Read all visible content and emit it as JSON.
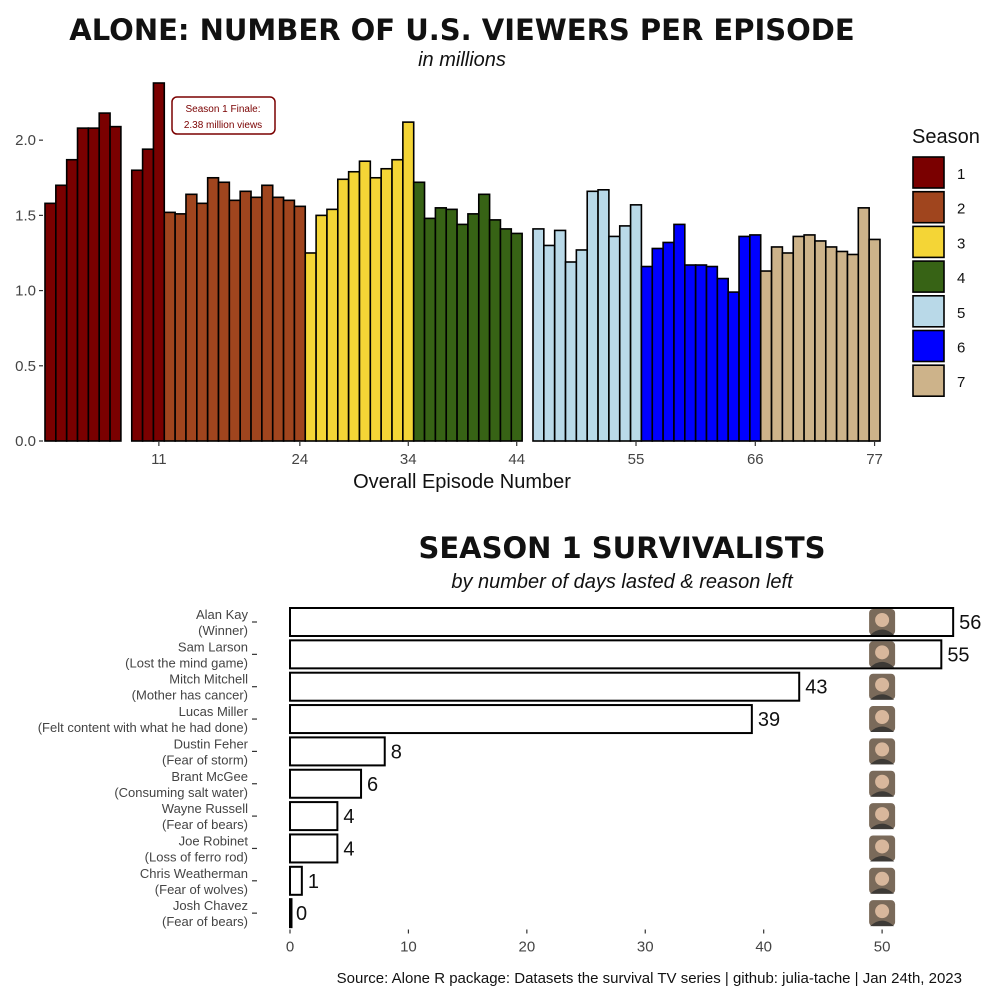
{
  "chart_data": [
    {
      "type": "bar",
      "title": "ALONE: NUMBER OF U.S. VIEWERS PER EPISODE",
      "subtitle": "in millions",
      "xlabel": "Overall Episode Number",
      "ylabel": "",
      "ylim": [
        0,
        2.4
      ],
      "xlim": [
        0.5,
        77.5
      ],
      "y_ticks": [
        0.0,
        0.5,
        1.0,
        1.5,
        2.0
      ],
      "y_tick_labels": [
        "0.0",
        "0.5",
        "1.0",
        "1.5",
        "2.0"
      ],
      "x_ticks": [
        11,
        24,
        34,
        44,
        55,
        66,
        77
      ],
      "x_tick_labels": [
        "11",
        "24",
        "34",
        "44",
        "55",
        "66",
        "77"
      ],
      "legend_title": "Season",
      "legend_position": "right",
      "grid": false,
      "series": [
        {
          "name": "1",
          "color": "#7a0000",
          "x": [
            1,
            2,
            3,
            4,
            5,
            6,
            7,
            9,
            10,
            11
          ],
          "values": [
            1.58,
            1.7,
            1.87,
            2.08,
            2.08,
            2.18,
            2.09,
            1.8,
            1.94,
            2.38
          ]
        },
        {
          "name": "2",
          "color": "#a0451e",
          "x": [
            12,
            13,
            14,
            15,
            16,
            17,
            18,
            19,
            20,
            21,
            22,
            23,
            24
          ],
          "values": [
            1.52,
            1.51,
            1.64,
            1.58,
            1.75,
            1.72,
            1.6,
            1.66,
            1.62,
            1.7,
            1.62,
            1.6,
            1.56
          ]
        },
        {
          "name": "3",
          "color": "#f4d536",
          "x": [
            25,
            26,
            27,
            28,
            29,
            30,
            31,
            32,
            33,
            34
          ],
          "values": [
            1.25,
            1.5,
            1.54,
            1.74,
            1.79,
            1.86,
            1.75,
            1.81,
            1.87,
            2.12
          ]
        },
        {
          "name": "4",
          "color": "#376315",
          "x": [
            35,
            36,
            37,
            38,
            39,
            40,
            41,
            42,
            43,
            44
          ],
          "values": [
            1.72,
            1.48,
            1.55,
            1.54,
            1.44,
            1.51,
            1.64,
            1.47,
            1.41,
            1.38
          ]
        },
        {
          "name": "5",
          "color": "#b9d9e8",
          "x": [
            46,
            47,
            48,
            49,
            50,
            51,
            52,
            53,
            54,
            55
          ],
          "values": [
            1.41,
            1.3,
            1.4,
            1.19,
            1.27,
            1.66,
            1.67,
            1.36,
            1.43,
            1.57
          ]
        },
        {
          "name": "6",
          "color": "#0000ff",
          "x": [
            56,
            57,
            58,
            59,
            60,
            61,
            62,
            63,
            64,
            65,
            66
          ],
          "values": [
            1.16,
            1.28,
            1.32,
            1.44,
            1.17,
            1.17,
            1.16,
            1.08,
            0.99,
            1.36,
            1.37
          ]
        },
        {
          "name": "7",
          "color": "#cdb38a",
          "x": [
            67,
            68,
            69,
            70,
            71,
            72,
            73,
            74,
            75,
            76,
            77
          ],
          "values": [
            1.13,
            1.29,
            1.25,
            1.36,
            1.37,
            1.33,
            1.29,
            1.26,
            1.24,
            1.55,
            1.34
          ]
        }
      ],
      "annotation": {
        "x": 11,
        "lines": [
          "Season 1 Finale:",
          "2.38 million views"
        ]
      }
    },
    {
      "type": "bar",
      "orientation": "horizontal",
      "title": "SEASON 1 SURVIVALISTS",
      "subtitle": "by number of days lasted & reason left",
      "xlabel": "",
      "ylabel": "",
      "xlim": [
        0,
        57
      ],
      "x_ticks": [
        0,
        10,
        20,
        30,
        40,
        50
      ],
      "x_tick_labels": [
        "0",
        "10",
        "20",
        "30",
        "40",
        "50"
      ],
      "grid": false,
      "categories": [
        {
          "name": "Alan Kay",
          "reason": "(Winner)"
        },
        {
          "name": "Sam Larson",
          "reason": "(Lost the mind game)"
        },
        {
          "name": "Mitch Mitchell",
          "reason": "(Mother has cancer)"
        },
        {
          "name": "Lucas Miller",
          "reason": "(Felt content with what he had done)"
        },
        {
          "name": "Dustin Feher",
          "reason": "(Fear of storm)"
        },
        {
          "name": "Brant McGee",
          "reason": "(Consuming salt water)"
        },
        {
          "name": "Wayne Russell",
          "reason": "(Fear of bears)"
        },
        {
          "name": "Joe Robinet",
          "reason": "(Loss of ferro rod)"
        },
        {
          "name": "Chris Weatherman",
          "reason": "(Fear of wolves)"
        },
        {
          "name": "Josh Chavez",
          "reason": "(Fear of bears)"
        }
      ],
      "values": [
        56,
        55,
        43,
        39,
        8,
        6,
        4,
        4,
        1,
        0
      ],
      "value_labels": [
        "56",
        "55",
        "43",
        "39",
        "8",
        "6",
        "4",
        "4",
        "1",
        "0"
      ],
      "bar_fill": "#ffffff",
      "bar_stroke": "#000000",
      "marker": "photo-icon"
    }
  ],
  "source": "Source: Alone R package: Datasets the survival TV series | github: julia-tache | Jan 24th, 2023"
}
